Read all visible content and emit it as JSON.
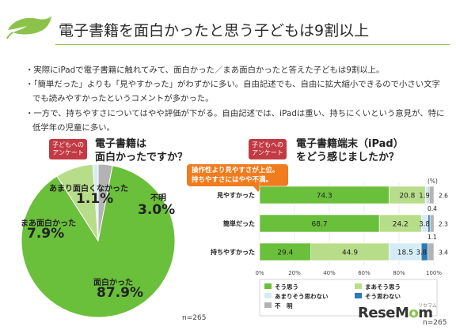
{
  "page": {
    "title": "電子書籍を面白かったと思う子どもは9割以上",
    "bullets": [
      "・実際にiPadで電子書籍に触れてみて、面白かった／まあ面白かったと答えた子どもは9割以上。",
      "・「簡単だった」よりも「見やすかった」がわずかに多い。自由記述でも、自由に拡大縮小できるので小さい文字でも読みやすかったというコメントが多かった。",
      "・一方で、持ちやすさについてはやや評価が下がる。自由記述では、iPadは重い、持ちにくいという意見が、特に低学年の児童に多い。"
    ],
    "logo": "ReseMom",
    "logo_sub": "リセマム"
  },
  "colors": {
    "green_dark": "#6abf3b",
    "green_light": "#b8dd8a",
    "pale_blue": "#d6ecf5",
    "blue": "#2e7ab5",
    "gray": "#b3b3b3",
    "badge": "#c23a43",
    "callout": "#f07c1e",
    "accent": "#8bc34a"
  },
  "chart_data": [
    {
      "type": "pie",
      "badge": "子どもへのアンケート",
      "title": "電子書籍は面白かったですか？",
      "slices": [
        {
          "label": "面白かった",
          "value": 87.9,
          "display": "87.9%"
        },
        {
          "label": "まあ面白かった",
          "value": 7.9,
          "display": "7.9%"
        },
        {
          "label": "あまり面白くなかった",
          "value": 1.1,
          "display": "1.1%"
        },
        {
          "label": "不明",
          "value": 3.0,
          "display": "3.0%"
        }
      ],
      "n": "n=265"
    },
    {
      "type": "bar",
      "stacked": true,
      "orientation": "horizontal",
      "badge": "子どもへのアンケート",
      "title": "電子書籍端末（iPad）をどう感じましたか？",
      "callout": "操作性より見やすさが上位。持ちやすさにはやや不満。",
      "unit": "(%)",
      "categories": [
        "見やすかった",
        "簡単だった",
        "持ちやすかった"
      ],
      "series": [
        {
          "name": "そう思う",
          "values": [
            74.3,
            68.7,
            29.4
          ]
        },
        {
          "name": "まあそう思う",
          "values": [
            20.8,
            24.2,
            44.9
          ]
        },
        {
          "name": "あまりそう思わない",
          "values": [
            1.9,
            3.8,
            18.5
          ]
        },
        {
          "name": "そう思わない",
          "values": [
            0.4,
            1.1,
            3.8
          ]
        },
        {
          "name": "不　明",
          "values": [
            2.6,
            2.3,
            3.4
          ]
        }
      ],
      "xlim": [
        0,
        100
      ],
      "xticks": [
        "0%",
        "20%",
        "40%",
        "60%",
        "80%",
        "100%"
      ],
      "legend": "bottom",
      "n": "n=265"
    }
  ]
}
